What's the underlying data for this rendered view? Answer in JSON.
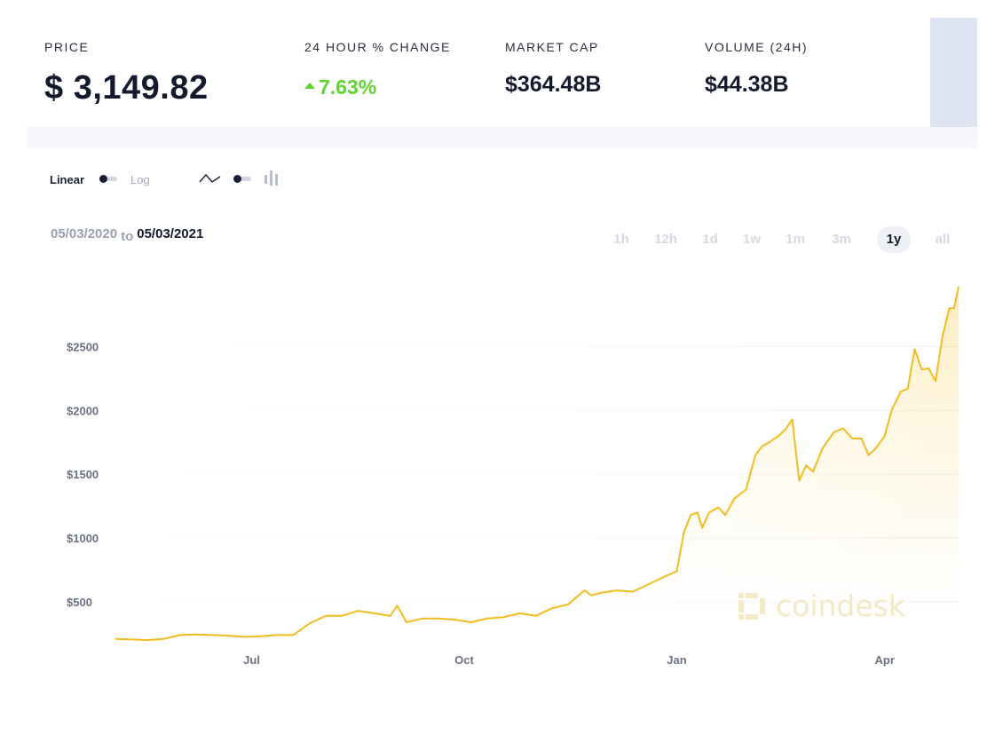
{
  "stats": {
    "price_label": "PRICE",
    "price_value": "$ 3,149.82",
    "change_label": "24 HOUR % CHANGE",
    "change_value": "7.63%",
    "marketcap_label": "MARKET CAP",
    "marketcap_value": "$364.48B",
    "volume_label": "VOLUME (24H)",
    "volume_value": "$44.38B"
  },
  "controls": {
    "scale_linear": "Linear",
    "scale_log": "Log",
    "line_icon": "line-chart-icon",
    "bar_icon": "candlestick-icon"
  },
  "date_range": {
    "from": "05/03/2020",
    "to_word": "to",
    "to": "05/03/2021"
  },
  "ranges": [
    "1h",
    "12h",
    "1d",
    "1w",
    "1m",
    "3m",
    "1y",
    "all"
  ],
  "active_range": "1y",
  "watermark": "coindesk",
  "colors": {
    "line": "#f2bc1f",
    "positive": "#5ed42f",
    "text_dark": "#141a2e"
  },
  "chart_data": {
    "type": "area",
    "title": "",
    "xlabel": "",
    "ylabel": "",
    "y_ticks": [
      500,
      1000,
      1500,
      2000,
      2500
    ],
    "y_tick_labels": [
      "$500",
      "$1000",
      "$1500",
      "$2000",
      "$2500"
    ],
    "ylim": [
      180,
      2990
    ],
    "x_ticks": [
      "Jul",
      "Oct",
      "Jan",
      "Apr"
    ],
    "x_tick_dates": [
      "2020-07-01",
      "2020-10-01",
      "2021-01-01",
      "2021-04-01"
    ],
    "xlim": [
      "2020-05-03",
      "2021-05-03"
    ],
    "grid": true,
    "series": [
      {
        "x": [
          "2020-05-03",
          "2020-05-10",
          "2020-05-17",
          "2020-05-24",
          "2020-05-31",
          "2020-06-07",
          "2020-06-14",
          "2020-06-21",
          "2020-06-28",
          "2020-07-05",
          "2020-07-12",
          "2020-07-19",
          "2020-07-26",
          "2020-08-02",
          "2020-08-09",
          "2020-08-16",
          "2020-08-23",
          "2020-08-30",
          "2020-09-02",
          "2020-09-06",
          "2020-09-13",
          "2020-09-20",
          "2020-09-27",
          "2020-10-04",
          "2020-10-11",
          "2020-10-18",
          "2020-10-25",
          "2020-11-01",
          "2020-11-08",
          "2020-11-15",
          "2020-11-22",
          "2020-11-25",
          "2020-11-29",
          "2020-12-06",
          "2020-12-13",
          "2020-12-20",
          "2020-12-27",
          "2021-01-01",
          "2021-01-04",
          "2021-01-07",
          "2021-01-10",
          "2021-01-12",
          "2021-01-15",
          "2021-01-19",
          "2021-01-22",
          "2021-01-26",
          "2021-01-31",
          "2021-02-04",
          "2021-02-07",
          "2021-02-10",
          "2021-02-14",
          "2021-02-17",
          "2021-02-20",
          "2021-02-23",
          "2021-02-26",
          "2021-03-01",
          "2021-03-05",
          "2021-03-10",
          "2021-03-14",
          "2021-03-18",
          "2021-03-22",
          "2021-03-25",
          "2021-03-28",
          "2021-04-01",
          "2021-04-04",
          "2021-04-08",
          "2021-04-11",
          "2021-04-14",
          "2021-04-17",
          "2021-04-20",
          "2021-04-23",
          "2021-04-26",
          "2021-04-29",
          "2021-05-01",
          "2021-05-03"
        ],
        "y": [
          210,
          205,
          200,
          210,
          240,
          245,
          240,
          235,
          225,
          230,
          240,
          240,
          330,
          390,
          390,
          430,
          410,
          390,
          470,
          340,
          370,
          370,
          360,
          340,
          370,
          380,
          410,
          390,
          450,
          480,
          590,
          550,
          570,
          590,
          580,
          640,
          700,
          740,
          1040,
          1180,
          1200,
          1080,
          1200,
          1240,
          1180,
          1310,
          1380,
          1650,
          1720,
          1750,
          1800,
          1850,
          1930,
          1450,
          1570,
          1520,
          1700,
          1830,
          1860,
          1780,
          1780,
          1650,
          1700,
          1800,
          2000,
          2150,
          2170,
          2480,
          2320,
          2330,
          2230,
          2580,
          2800,
          2800,
          2970
        ]
      }
    ]
  }
}
